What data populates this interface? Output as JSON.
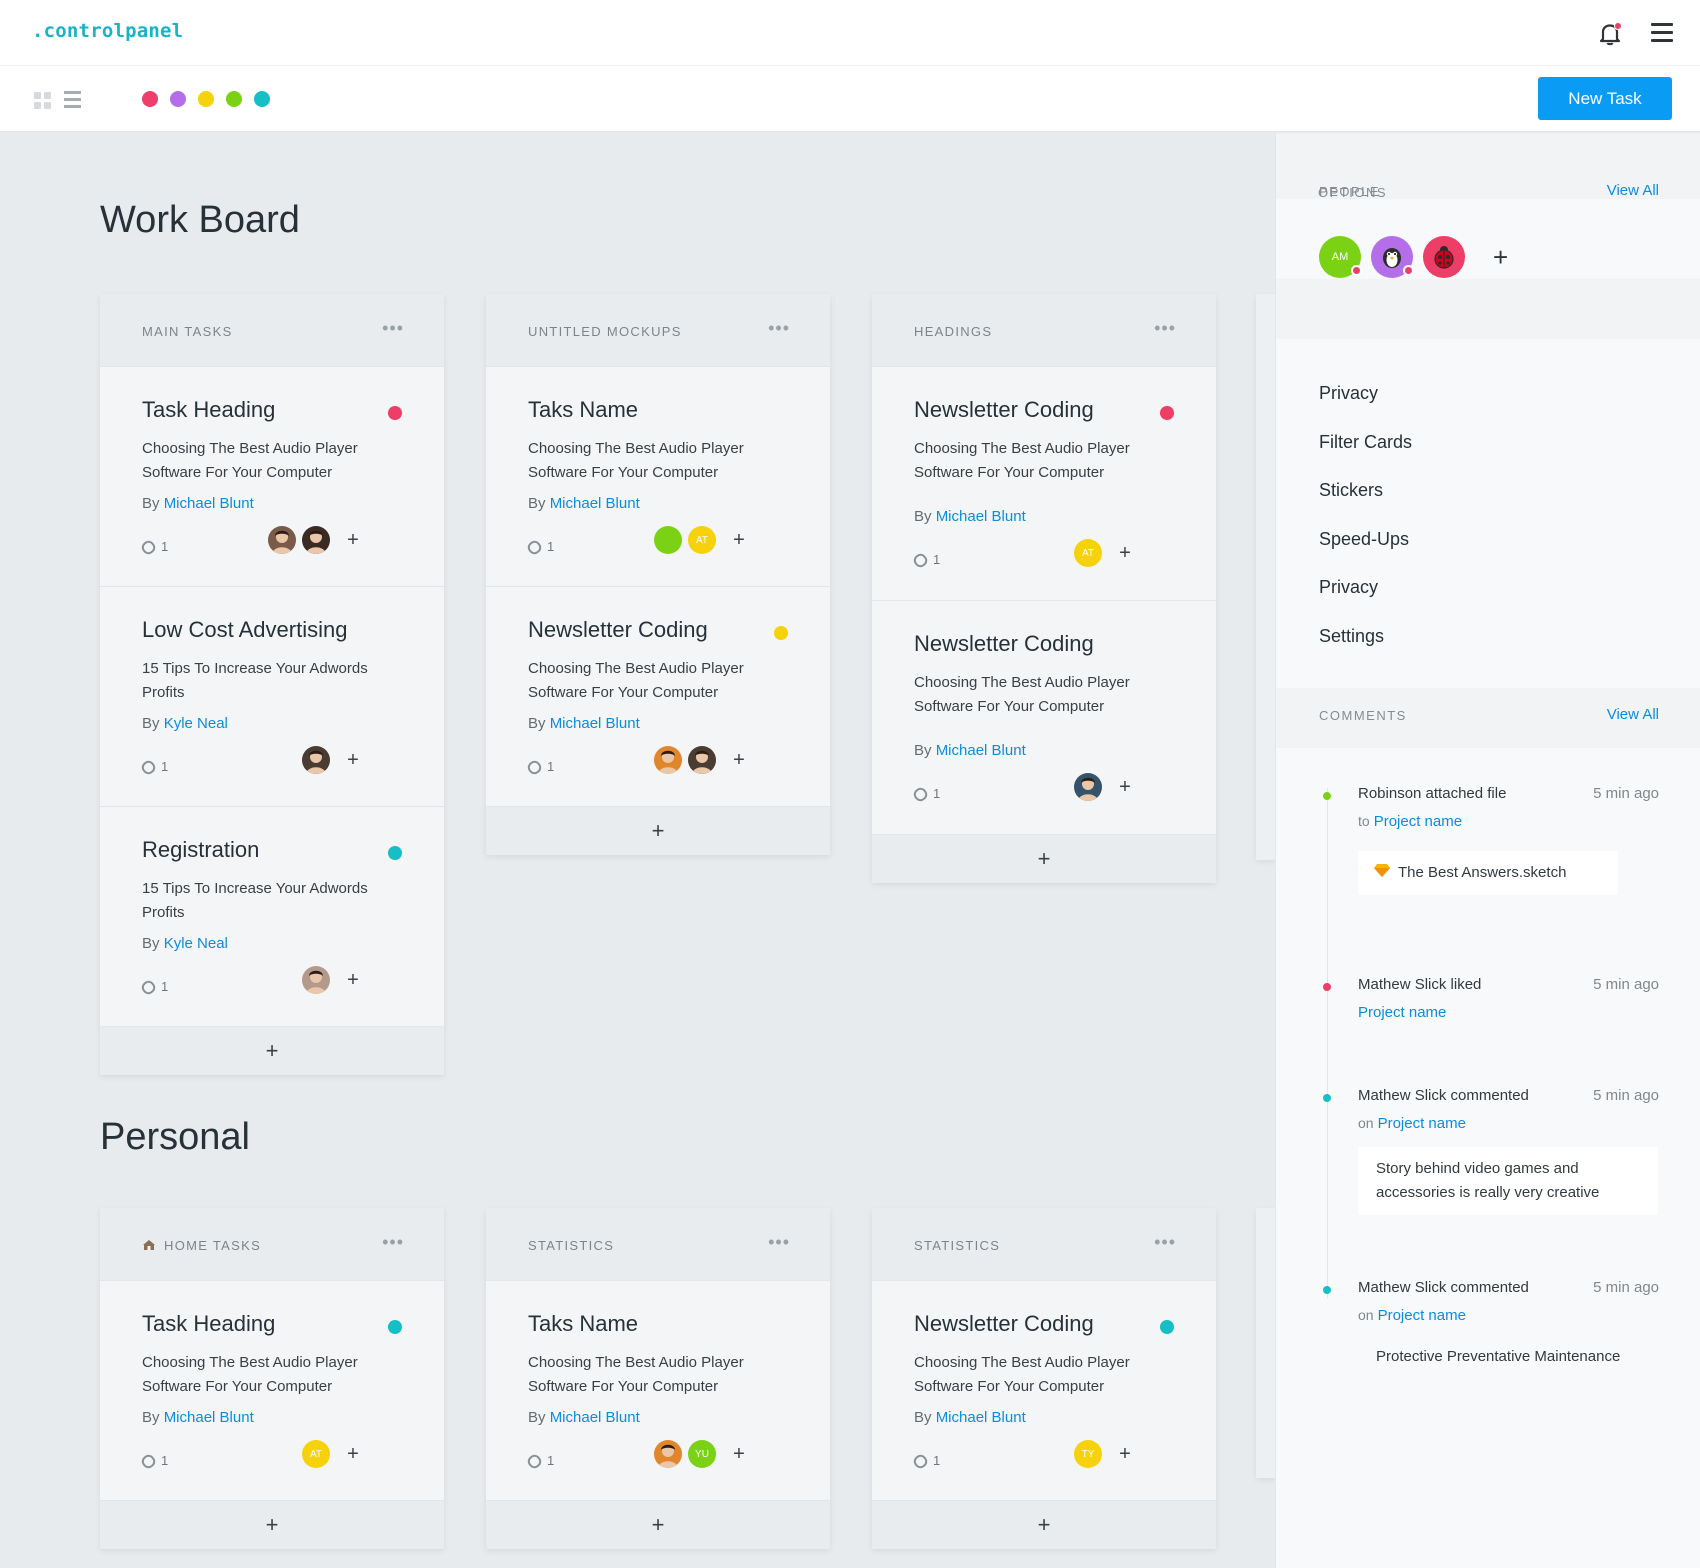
{
  "app": {
    "logo": ".controlpanel"
  },
  "toolbar": {
    "new_task_label": "New Task",
    "color_filters": [
      "#ee3e6a",
      "#b36ee8",
      "#f5d20b",
      "#7bd215",
      "#16bec5"
    ]
  },
  "sections": [
    {
      "title": "Work Board",
      "columns": [
        {
          "title": "MAIN TASKS",
          "more": "•••",
          "add": "+",
          "cards": [
            {
              "title": "Task Heading",
              "status_color": "#ec3e66",
              "desc": "Choosing The Best Audio Player Software For Your Computer",
              "by": "By",
              "author": "Michael Blunt",
              "attachments": "1"
            },
            {
              "title": "Low Cost Advertising",
              "status_color": "",
              "desc": "15 Tips To Increase Your Adwords Profits",
              "by": "By",
              "author": "Kyle Neal",
              "attachments": "1"
            },
            {
              "title": "Registration",
              "status_color": "#16bec5",
              "desc": "15 Tips To Increase Your Adwords Profits",
              "by": "By",
              "author": "Kyle Neal",
              "attachments": "1"
            }
          ]
        },
        {
          "title": "UNTITLED MOCKUPS",
          "more": "•••",
          "add": "+",
          "cards": [
            {
              "title": "Taks Name",
              "status_color": "",
              "desc": "Choosing The Best Audio Player Software For Your Computer",
              "by": "By",
              "author": "Michael Blunt",
              "attachments": "1",
              "avatar_labels": [
                "",
                "AT"
              ]
            },
            {
              "title": "Newsletter Coding",
              "status_color": "#f5d20b",
              "desc": "Choosing The Best Audio Player Software For Your Computer",
              "by": "By",
              "author": "Michael Blunt",
              "attachments": "1"
            }
          ]
        },
        {
          "title": "HEADINGS",
          "more": "•••",
          "add": "+",
          "cards": [
            {
              "title": "Newsletter Coding",
              "status_color": "#ec3e66",
              "desc": "Choosing The Best Audio Player Software For Your Computer",
              "by": "By",
              "author": "Michael Blunt",
              "attachments": "1",
              "avatar_labels": [
                "AT"
              ]
            },
            {
              "title": "Newsletter Coding",
              "status_color": "",
              "desc": "Choosing The Best Audio Player Software For Your Computer",
              "by": "By",
              "author": "Michael Blunt",
              "attachments": "1"
            }
          ]
        }
      ]
    },
    {
      "title": "Personal",
      "columns": [
        {
          "title": "HOME TASKS",
          "more": "•••",
          "add": "+",
          "cards": [
            {
              "title": "Task Heading",
              "status_color": "#16bec5",
              "desc": "Choosing The Best Audio Player Software For Your Computer",
              "by": "By",
              "author": "Michael Blunt",
              "attachments": "1",
              "avatar_labels": [
                "AT"
              ]
            }
          ]
        },
        {
          "title": "STATISTICS",
          "more": "•••",
          "add": "+",
          "cards": [
            {
              "title": "Taks Name",
              "status_color": "",
              "desc": "Choosing The Best Audio Player Software For Your Computer",
              "by": "By",
              "author": "Michael Blunt",
              "attachments": "1",
              "avatar_labels": [
                "",
                "YU"
              ]
            }
          ]
        },
        {
          "title": "STATISTICS",
          "more": "•••",
          "add": "+",
          "cards": [
            {
              "title": "Newsletter Coding",
              "status_color": "#16bec5",
              "desc": "Choosing The Best Audio Player Software For Your Computer",
              "by": "By",
              "author": "Michael Blunt",
              "attachments": "1",
              "avatar_labels": [
                "TY"
              ]
            }
          ]
        }
      ]
    }
  ],
  "sidebar": {
    "people": {
      "title": "PEOPLE",
      "view_all": "View All",
      "avatars": [
        "AM",
        "",
        ""
      ],
      "add": "+"
    },
    "options": {
      "title": "OPTIONS",
      "items": [
        "Privacy",
        "Filter Cards",
        "Stickers",
        "Speed-Ups",
        "Privacy",
        "Settings"
      ]
    },
    "comments": {
      "title": "COMMENTS",
      "view_all": "View All",
      "items": [
        {
          "who": "Robinson attached file",
          "when": "5 min ago",
          "prep": "to",
          "link": "Project name",
          "attachment": "The Best Answers.sketch",
          "color": "#7bd215"
        },
        {
          "who": "Mathew Slick liked",
          "when": "5 min ago",
          "prep": "",
          "link": "Project name",
          "color": "#ec3e66"
        },
        {
          "who": "Mathew Slick commented",
          "when": "5 min ago",
          "prep": "on",
          "link": "Project name",
          "quote": "Story behind video games and accessories is really very creative",
          "color": "#16bec5"
        },
        {
          "who": "Mathew Slick commented",
          "when": "5 min ago",
          "prep": "on",
          "link": "Project name",
          "quote": "Protective Preventative Maintenance",
          "color": "#16bec5"
        }
      ]
    }
  }
}
